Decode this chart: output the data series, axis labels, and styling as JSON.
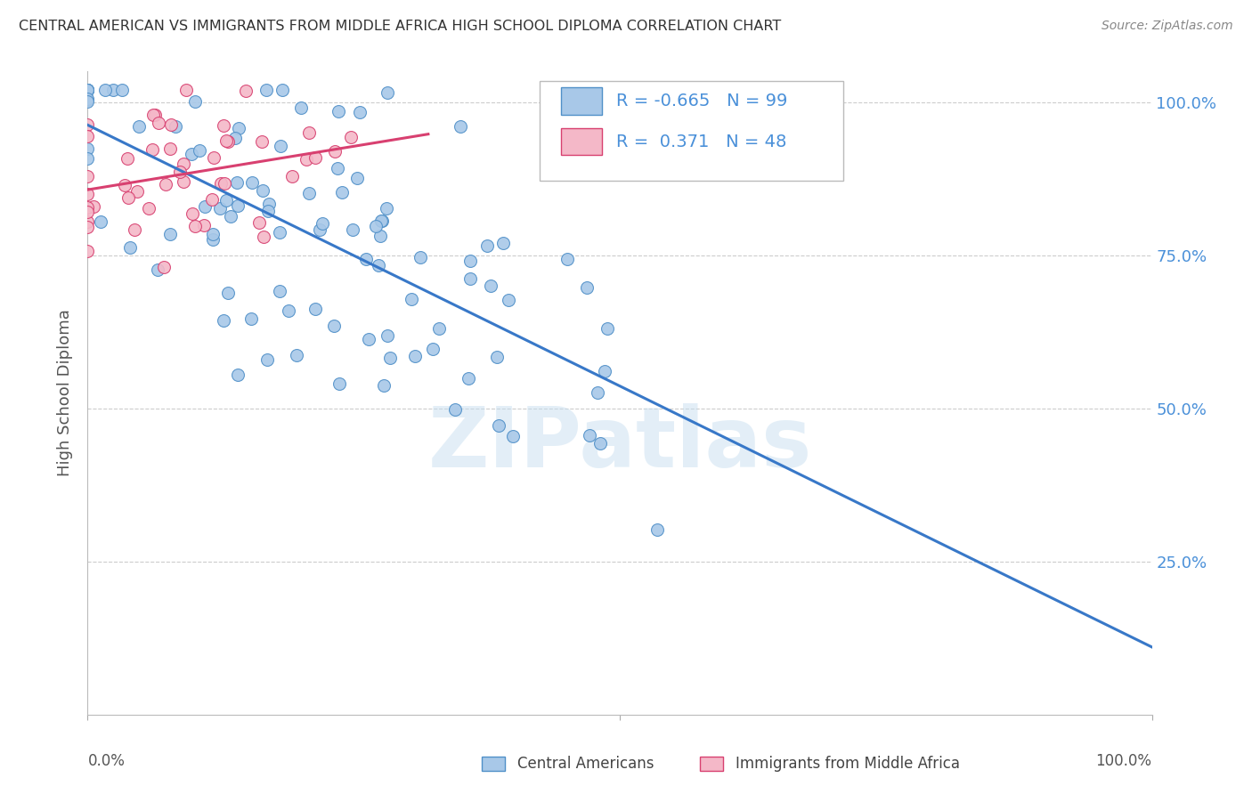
{
  "title": "CENTRAL AMERICAN VS IMMIGRANTS FROM MIDDLE AFRICA HIGH SCHOOL DIPLOMA CORRELATION CHART",
  "source": "Source: ZipAtlas.com",
  "ylabel": "High School Diploma",
  "legend_r_blue": "-0.665",
  "legend_n_blue": "99",
  "legend_r_pink": "0.371",
  "legend_n_pink": "48",
  "blue_fill": "#a8c8e8",
  "pink_fill": "#f4b8c8",
  "blue_edge": "#5090c8",
  "pink_edge": "#d84070",
  "blue_line": "#3878c8",
  "pink_line": "#d84070",
  "watermark_color": "#c8dff0",
  "background_color": "#ffffff",
  "grid_color": "#cccccc",
  "right_tick_color": "#4a90d9",
  "title_color": "#333333",
  "source_color": "#888888",
  "dot_size": 100,
  "blue_N": 99,
  "pink_N": 48,
  "blue_R": -0.665,
  "pink_R": 0.371,
  "blue_seed": 42,
  "pink_seed": 7
}
